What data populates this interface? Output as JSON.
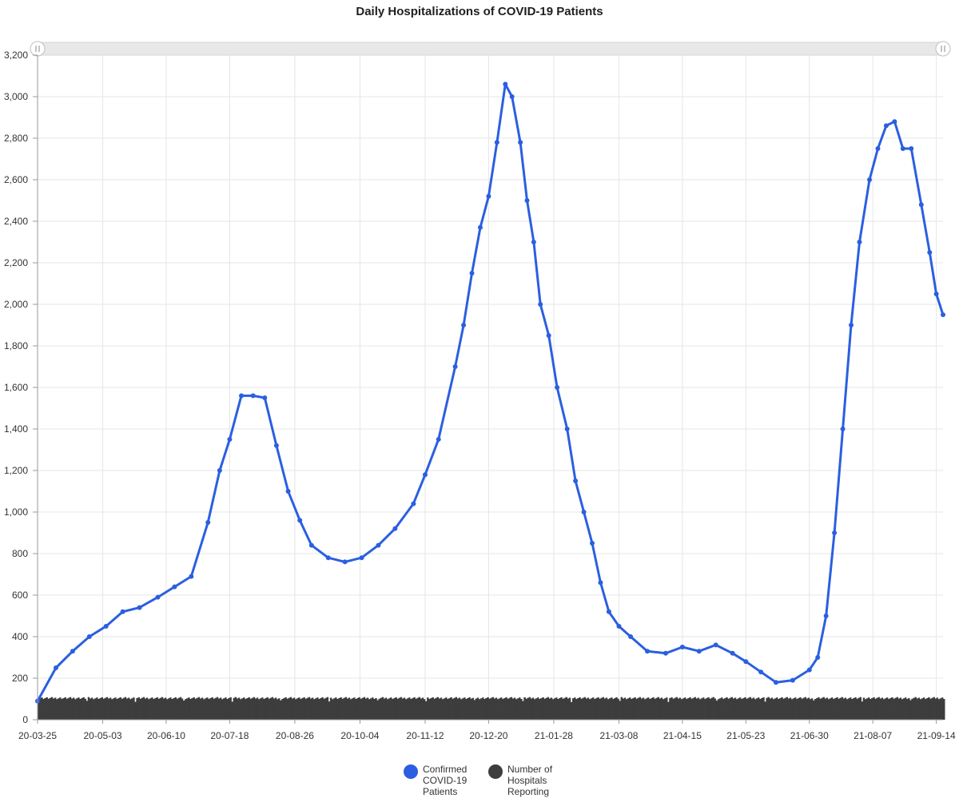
{
  "chart_data": {
    "type": "line",
    "title": "Daily Hospitalizations of COVID-19 Patients",
    "xlabel": "",
    "ylabel": "",
    "ylim": [
      0,
      3200
    ],
    "y_ticks": [
      "0",
      "200",
      "400",
      "600",
      "800",
      "1,000",
      "1,200",
      "1,400",
      "1,600",
      "1,800",
      "2,000",
      "2,200",
      "2,400",
      "2,600",
      "2,800",
      "3,000",
      "3,200"
    ],
    "x_ticks": [
      "20-03-25",
      "20-05-03",
      "20-06-10",
      "20-07-18",
      "20-08-26",
      "20-10-04",
      "20-11-12",
      "20-12-20",
      "21-01-28",
      "21-03-08",
      "21-04-15",
      "21-05-23",
      "21-06-30",
      "21-08-07",
      "21-09-14"
    ],
    "x_start": "20-03-25",
    "x_end": "21-09-18",
    "grid": true,
    "legend_position": "bottom",
    "scrollbar": true,
    "series": [
      {
        "name": "Confirmed COVID-19 Patients",
        "color": "#2b5fe0",
        "markers": true,
        "x": [
          "20-03-25",
          "20-04-05",
          "20-04-15",
          "20-04-25",
          "20-05-05",
          "20-05-15",
          "20-05-25",
          "20-06-05",
          "20-06-15",
          "20-06-25",
          "20-07-05",
          "20-07-12",
          "20-07-18",
          "20-07-25",
          "20-08-01",
          "20-08-08",
          "20-08-15",
          "20-08-22",
          "20-08-29",
          "20-09-05",
          "20-09-15",
          "20-09-25",
          "20-10-05",
          "20-10-15",
          "20-10-25",
          "20-11-05",
          "20-11-12",
          "20-11-20",
          "20-11-30",
          "20-12-05",
          "20-12-10",
          "20-12-15",
          "20-12-20",
          "20-12-25",
          "20-12-30",
          "21-01-03",
          "21-01-08",
          "21-01-12",
          "21-01-16",
          "21-01-20",
          "21-01-25",
          "21-01-30",
          "21-02-05",
          "21-02-10",
          "21-02-15",
          "21-02-20",
          "21-02-25",
          "21-03-02",
          "21-03-08",
          "21-03-15",
          "21-03-25",
          "21-04-05",
          "21-04-15",
          "21-04-25",
          "21-05-05",
          "21-05-15",
          "21-05-23",
          "21-06-01",
          "21-06-10",
          "21-06-20",
          "21-06-30",
          "21-07-05",
          "21-07-10",
          "21-07-15",
          "21-07-20",
          "21-07-25",
          "21-07-30",
          "21-08-05",
          "21-08-10",
          "21-08-15",
          "21-08-20",
          "21-08-25",
          "21-08-30",
          "21-09-05",
          "21-09-10",
          "21-09-14",
          "21-09-18"
        ],
        "values": [
          90,
          250,
          330,
          400,
          450,
          520,
          540,
          590,
          640,
          690,
          950,
          1200,
          1350,
          1560,
          1560,
          1550,
          1320,
          1100,
          960,
          840,
          780,
          760,
          780,
          840,
          920,
          1040,
          1180,
          1350,
          1700,
          1900,
          2150,
          2370,
          2520,
          2780,
          3060,
          3000,
          2780,
          2500,
          2300,
          2000,
          1850,
          1600,
          1400,
          1150,
          1000,
          850,
          660,
          520,
          450,
          400,
          330,
          320,
          350,
          330,
          360,
          320,
          280,
          230,
          180,
          190,
          240,
          300,
          500,
          900,
          1400,
          1900,
          2300,
          2600,
          2750,
          2860,
          2880,
          2750,
          2750,
          2480,
          2250,
          2050,
          1950
        ]
      },
      {
        "name": "Number of Hospitals Reporting",
        "color": "#3d3d3d",
        "type": "bar",
        "approx_value": 104
      }
    ]
  }
}
